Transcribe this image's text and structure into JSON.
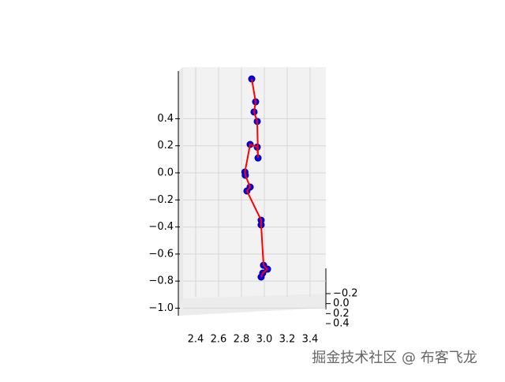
{
  "chart_data": {
    "type": "scatter3d",
    "xlim": [
      2.3,
      3.5
    ],
    "xticks": [
      2.4,
      2.6,
      2.8,
      {
        "value": 3.0,
        "label": "3.0"
      },
      3.2,
      3.4
    ],
    "ylim": [
      -1.06,
      0.78
    ],
    "yticks": [
      {
        "value": 0.4,
        "label": "0.4"
      },
      {
        "value": 0.2,
        "label": "0.2"
      },
      {
        "value": 0.0,
        "label": "0.0"
      },
      {
        "value": -0.2,
        "label": "−0.2"
      },
      {
        "value": -0.4,
        "label": "−0.4"
      },
      {
        "value": -0.6,
        "label": "−0.6"
      },
      {
        "value": -0.8,
        "label": "−0.8"
      },
      {
        "value": -1.0,
        "label": "−1.0"
      }
    ],
    "zticks": [
      {
        "value": -0.2,
        "label": "−0.2"
      },
      {
        "value": 0.0,
        "label": "0.0"
      },
      {
        "value": 0.2,
        "label": "0.2"
      },
      {
        "value": 0.4,
        "label": "0.4"
      }
    ],
    "grid": true,
    "series": [
      {
        "color": "#0000ff",
        "line_color": "#ff0000",
        "x": [
          2.89,
          2.924,
          2.91,
          2.938,
          2.945,
          2.938,
          2.876,
          2.83,
          2.834,
          2.876,
          2.848,
          2.972,
          2.972,
          2.993,
          3.028,
          2.986,
          2.972
        ],
        "values": [
          0.694,
          0.525,
          0.45,
          0.38,
          0.11,
          0.19,
          0.21,
          0.006,
          -0.018,
          -0.105,
          -0.134,
          -0.35,
          -0.385,
          -0.683,
          -0.712,
          -0.741,
          -0.77
        ]
      }
    ],
    "watermark": "掘金技术社区 @ 布客飞龙"
  }
}
